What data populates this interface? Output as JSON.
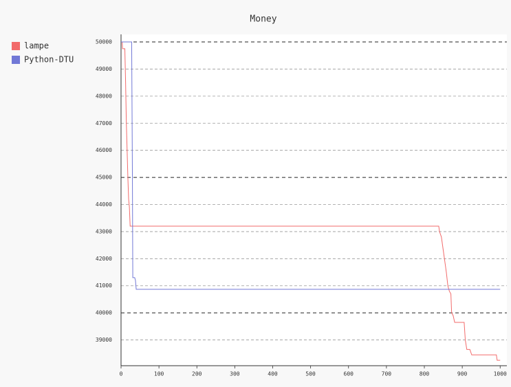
{
  "chart_data": {
    "type": "line",
    "title": "Money",
    "xlim": [
      0,
      1005
    ],
    "ylim": [
      38050,
      50280
    ],
    "xticks": [
      0,
      100,
      200,
      300,
      400,
      500,
      600,
      700,
      800,
      900,
      1000
    ],
    "yticks": [
      39000,
      40000,
      41000,
      42000,
      43000,
      44000,
      45000,
      46000,
      47000,
      48000,
      49000,
      50000
    ],
    "y_major_ticks": [
      40000,
      45000,
      50000
    ],
    "grid": true,
    "legend": "left",
    "series": [
      {
        "name": "lampe",
        "color": "#f26b6b",
        "x": [
          0,
          3,
          4,
          10,
          12,
          14,
          16,
          18,
          20,
          22,
          24,
          838,
          840,
          845,
          850,
          855,
          858,
          862,
          866,
          870,
          872,
          876,
          880,
          905,
          908,
          912,
          920,
          925,
          990,
          992,
          1000
        ],
        "values": [
          50000,
          50000,
          49750,
          49750,
          48500,
          47000,
          46000,
          45000,
          44200,
          43900,
          43200,
          43200,
          43000,
          42800,
          42300,
          41800,
          41500,
          41000,
          40800,
          40700,
          40000,
          39900,
          39650,
          39650,
          39000,
          38650,
          38650,
          38450,
          38450,
          38250,
          38250
        ]
      },
      {
        "name": "Python-DTU",
        "color": "#7178d6",
        "x": [
          0,
          28,
          30,
          31,
          36,
          38,
          40,
          1000
        ],
        "values": [
          50000,
          50000,
          45000,
          41300,
          41300,
          41200,
          40870,
          40870
        ]
      }
    ]
  }
}
